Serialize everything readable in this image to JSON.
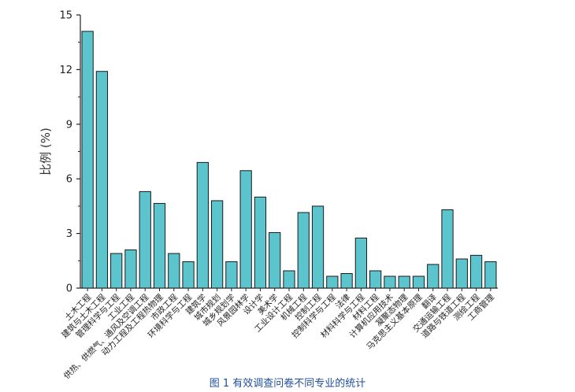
{
  "chart_data": {
    "type": "bar",
    "ylabel": "比例 (%)",
    "ylim": [
      0,
      15
    ],
    "yticks": [
      0,
      3,
      6,
      9,
      12,
      15
    ],
    "bar_color": "#5bc4cc",
    "bar_edge_color": "#1a1a1a",
    "grid": false,
    "categories": [
      "土木工程",
      "建筑与土木工程",
      "管理科学与工程",
      "工业工程",
      "供热、供燃气、通风及空调工程",
      "动力工程及工程热物理",
      "市政工程",
      "环境科学与工程",
      "建筑学",
      "城市规划",
      "城乡规划学",
      "风景园林学",
      "设计学",
      "美术学",
      "工业设计工程",
      "机械工程",
      "控制工程",
      "控制科学与工程",
      "法律",
      "材料科学与工程",
      "材料工程",
      "计算机应用技术",
      "凝聚态物理",
      "马克思主义基本原理",
      "翻译",
      "交通运输工程",
      "道路与铁道工程",
      "测绘工程",
      "工商管理"
    ],
    "values": [
      14.1,
      11.9,
      1.9,
      2.1,
      5.3,
      4.65,
      1.9,
      1.45,
      6.9,
      4.8,
      1.45,
      6.45,
      5.0,
      3.05,
      0.95,
      4.15,
      4.5,
      0.65,
      0.8,
      2.75,
      0.95,
      0.65,
      0.65,
      0.65,
      1.3,
      4.3,
      1.6,
      1.8,
      1.45
    ]
  },
  "caption": "图 1 有效调查问卷不同专业的统计"
}
